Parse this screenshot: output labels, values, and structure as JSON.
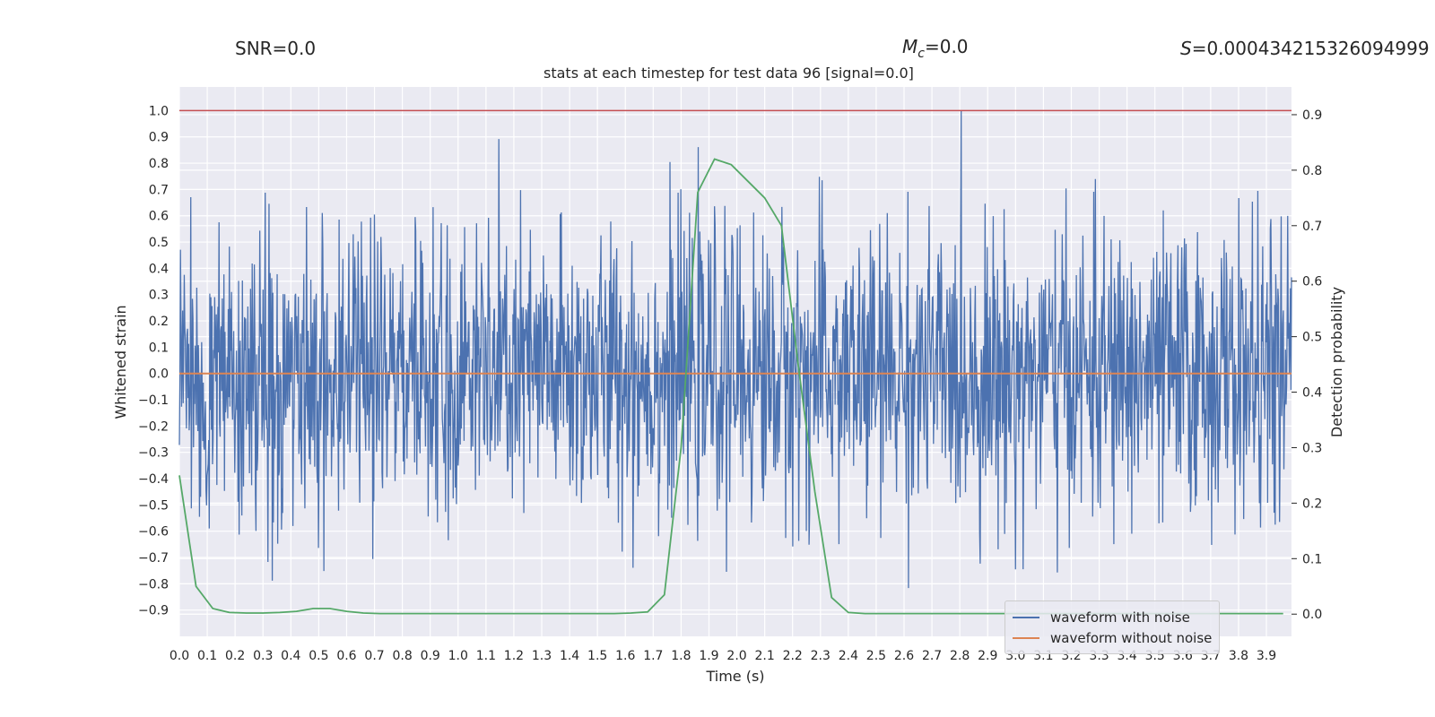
{
  "annotations": {
    "snr": "SNR=0.0",
    "mc_prefix": "M",
    "mc_sub": "c",
    "mc_value": "=0.0",
    "s_prefix": "S",
    "s_value": "=0.000434215326094999"
  },
  "chart_data": {
    "type": "line",
    "title": "stats at each timestep for test data 96 [signal=0.0]",
    "xlabel": "Time (s)",
    "ylabel": "Whitened strain",
    "y2label": "Detection probability",
    "xlim": [
      0.0,
      3.99
    ],
    "ylim": [
      -1.0,
      1.09
    ],
    "y2lim": [
      -0.04,
      0.95
    ],
    "x_ticks": [
      "0.0",
      "0.1",
      "0.2",
      "0.3",
      "0.4",
      "0.5",
      "0.6",
      "0.7",
      "0.8",
      "0.9",
      "1.0",
      "1.1",
      "1.2",
      "1.3",
      "1.4",
      "1.5",
      "1.6",
      "1.7",
      "1.8",
      "1.9",
      "2.0",
      "2.1",
      "2.2",
      "2.3",
      "2.4",
      "2.5",
      "2.6",
      "2.7",
      "2.8",
      "2.9",
      "3.0",
      "3.1",
      "3.2",
      "3.3",
      "3.4",
      "3.5",
      "3.6",
      "3.7",
      "3.8",
      "3.9"
    ],
    "y_ticks": [
      "1.0",
      "0.9",
      "0.8",
      "0.7",
      "0.6",
      "0.5",
      "0.4",
      "0.3",
      "0.2",
      "0.1",
      "0.0",
      "−0.1",
      "−0.2",
      "−0.3",
      "−0.4",
      "−0.5",
      "−0.6",
      "−0.7",
      "−0.8",
      "−0.9"
    ],
    "y2_ticks": [
      "0.9",
      "0.8",
      "0.7",
      "0.6",
      "0.5",
      "0.4",
      "0.3",
      "0.2",
      "0.1",
      "0.0"
    ],
    "threshold": 1.0,
    "threshold_color": "#c44e52",
    "series": [
      {
        "name": "waveform with noise",
        "color": "#4c72b0",
        "samples": 2048,
        "amplitude_std": 0.27,
        "amplitude_range": [
          -0.9,
          1.0
        ]
      },
      {
        "name": "waveform without noise",
        "color": "#dd8452",
        "value": 0.0
      },
      {
        "name": "detection probability",
        "color": "#55a868",
        "axis": "right",
        "x": [
          0.0,
          0.06,
          0.12,
          0.18,
          0.24,
          0.3,
          0.36,
          0.42,
          0.48,
          0.54,
          0.6,
          0.66,
          0.72,
          0.78,
          0.84,
          0.9,
          0.96,
          1.02,
          1.08,
          1.14,
          1.2,
          1.26,
          1.32,
          1.38,
          1.44,
          1.5,
          1.56,
          1.62,
          1.68,
          1.74,
          1.8,
          1.86,
          1.92,
          1.98,
          2.04,
          2.1,
          2.16,
          2.22,
          2.28,
          2.34,
          2.4,
          2.46,
          2.52,
          2.58,
          2.64,
          2.7,
          2.76,
          2.82,
          2.88,
          2.94,
          3.0,
          3.06,
          3.12,
          3.18,
          3.24,
          3.3,
          3.36,
          3.42,
          3.48,
          3.54,
          3.6,
          3.66,
          3.72,
          3.78,
          3.84,
          3.9,
          3.96
        ],
        "y": [
          0.25,
          0.05,
          0.01,
          0.003,
          0.002,
          0.002,
          0.003,
          0.005,
          0.01,
          0.01,
          0.005,
          0.002,
          0.001,
          0.001,
          0.001,
          0.001,
          0.001,
          0.001,
          0.001,
          0.001,
          0.001,
          0.001,
          0.001,
          0.001,
          0.001,
          0.001,
          0.001,
          0.002,
          0.004,
          0.035,
          0.3,
          0.76,
          0.82,
          0.81,
          0.78,
          0.75,
          0.7,
          0.45,
          0.22,
          0.03,
          0.003,
          0.001,
          0.001,
          0.001,
          0.001,
          0.001,
          0.001,
          0.001,
          0.001,
          0.001,
          0.001,
          0.001,
          0.001,
          0.001,
          0.001,
          0.001,
          0.001,
          0.001,
          0.001,
          0.001,
          0.001,
          0.001,
          0.001,
          0.001,
          0.001,
          0.001,
          0.001
        ]
      }
    ],
    "legend_position": "lower-right",
    "grid": true
  }
}
